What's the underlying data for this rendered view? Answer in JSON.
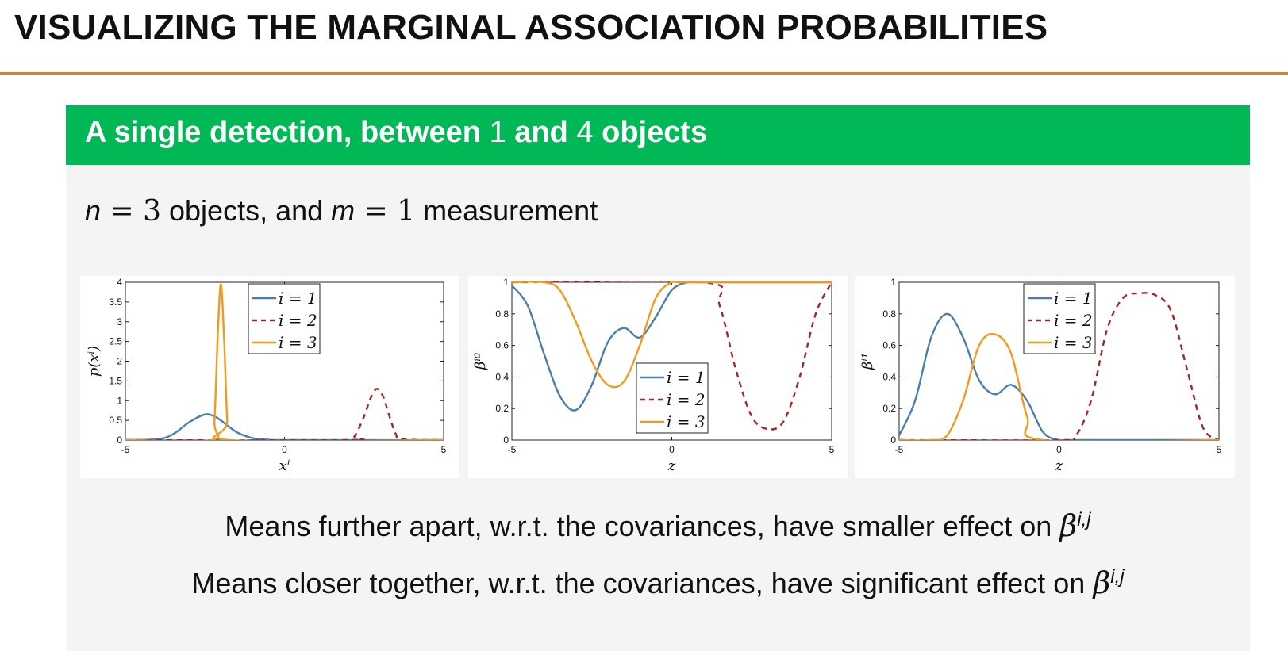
{
  "slide": {
    "title": "VISUALIZING THE MARGINAL ASSOCIATION PROBABILITIES",
    "accent_color": "#e8762c"
  },
  "block": {
    "header_color": "#00b956",
    "title_part1": "A single detection, between ",
    "title_num1": "1",
    "title_part2": " and ",
    "title_num2": "4",
    "title_part3": " objects",
    "setup": {
      "n_symbol": "n",
      "n_eq": " = 3",
      "mid": " objects, and ",
      "m_symbol": "m",
      "m_eq": " = 1",
      "end": " measurement"
    },
    "caption1_text": "Means further apart, w.r.t. the covariances, have smaller effect on ",
    "caption2_text": "Means closer together, w.r.t. the covariances, have significant effect on ",
    "beta_symbol": "β",
    "beta_sup": "i,j"
  },
  "chart_data": [
    {
      "type": "line",
      "ylabel": "p(xⁱ)",
      "xlabel": "xⁱ",
      "xlim": [
        -5,
        5
      ],
      "ylim": [
        0,
        4
      ],
      "xticks": [
        "-5",
        "0",
        "5"
      ],
      "yticks": [
        "0",
        "0.5",
        "1",
        "1.5",
        "2",
        "2.5",
        "3",
        "3.5",
        "4"
      ],
      "legend_position": "top-center",
      "series": [
        {
          "name": "i = 1",
          "color": "#4a7fad",
          "dash": "solid",
          "x": [
            -5,
            -4,
            -3.5,
            -3,
            -2.5,
            -2.2,
            -2,
            -1.5,
            -1,
            -0.5,
            0,
            5
          ],
          "y": [
            0,
            0.02,
            0.15,
            0.45,
            0.65,
            0.6,
            0.5,
            0.2,
            0.05,
            0.01,
            0,
            0
          ]
        },
        {
          "name": "i = 2",
          "color": "#a82424",
          "dash": "dashed",
          "x": [
            -5,
            1.9,
            2.2,
            2.5,
            2.7,
            2.9,
            3.1,
            3.3,
            3.5,
            3.7,
            5
          ],
          "y": [
            0,
            0,
            0.1,
            0.6,
            1.05,
            1.3,
            1.1,
            0.6,
            0.15,
            0.02,
            0
          ]
        },
        {
          "name": "i = 3",
          "color": "#f09a1e",
          "dash": "solid",
          "x": [
            -5,
            -2.3,
            -2.2,
            -2.1,
            -2.0,
            -1.9,
            -1.8,
            -1.7,
            5
          ],
          "y": [
            0,
            0,
            0.5,
            2.6,
            3.95,
            2.6,
            0.5,
            0,
            0
          ]
        }
      ]
    },
    {
      "type": "line",
      "ylabel": "βⁱ⁰",
      "xlabel": "z",
      "xlim": [
        -5,
        5
      ],
      "ylim": [
        0,
        1
      ],
      "xticks": [
        "-5",
        "0",
        "5"
      ],
      "yticks": [
        "0",
        "0.2",
        "0.4",
        "0.6",
        "0.8",
        "1"
      ],
      "legend_position": "lower-center",
      "series": [
        {
          "name": "i = 1",
          "color": "#4a7fad",
          "dash": "solid",
          "x": [
            -5,
            -4.5,
            -4,
            -3.5,
            -3,
            -2.5,
            -2,
            -1.5,
            -1,
            -0.5,
            0,
            0.5,
            1,
            5
          ],
          "y": [
            0.98,
            0.85,
            0.55,
            0.28,
            0.19,
            0.35,
            0.62,
            0.71,
            0.65,
            0.78,
            0.95,
            1,
            1,
            1
          ]
        },
        {
          "name": "i = 2",
          "color": "#a82424",
          "dash": "dashed",
          "x": [
            -5,
            1,
            1.5,
            2,
            2.5,
            3,
            3.5,
            4,
            4.5,
            5
          ],
          "y": [
            1,
            1,
            0.85,
            0.45,
            0.15,
            0.07,
            0.12,
            0.4,
            0.8,
            1
          ]
        },
        {
          "name": "i = 3",
          "color": "#f09a1e",
          "dash": "solid",
          "x": [
            -5,
            -4,
            -3.5,
            -3,
            -2.5,
            -2,
            -1.5,
            -1,
            -0.5,
            0,
            0.5,
            5
          ],
          "y": [
            1,
            1,
            0.95,
            0.75,
            0.5,
            0.35,
            0.37,
            0.6,
            0.9,
            1,
            1,
            1
          ]
        }
      ]
    },
    {
      "type": "line",
      "ylabel": "βⁱ¹",
      "xlabel": "z",
      "xlim": [
        -5,
        5
      ],
      "ylim": [
        0,
        1
      ],
      "xticks": [
        "-5",
        "0",
        "5"
      ],
      "yticks": [
        "0",
        "0.2",
        "0.4",
        "0.6",
        "0.8",
        "1"
      ],
      "legend_position": "top-center",
      "series": [
        {
          "name": "i = 1",
          "color": "#4a7fad",
          "dash": "solid",
          "x": [
            -5,
            -4.5,
            -4,
            -3.5,
            -3,
            -2.5,
            -2,
            -1.5,
            -1,
            -0.5,
            0,
            0.5,
            5
          ],
          "y": [
            0.03,
            0.25,
            0.65,
            0.8,
            0.65,
            0.38,
            0.29,
            0.35,
            0.25,
            0.05,
            0,
            0,
            0
          ]
        },
        {
          "name": "i = 2",
          "color": "#a82424",
          "dash": "dashed",
          "x": [
            -5,
            0,
            0.5,
            1,
            1.5,
            2,
            2.5,
            3,
            3.5,
            4,
            4.5,
            5
          ],
          "y": [
            0,
            0,
            0.02,
            0.25,
            0.7,
            0.9,
            0.93,
            0.92,
            0.82,
            0.45,
            0.08,
            0
          ]
        },
        {
          "name": "i = 3",
          "color": "#f09a1e",
          "dash": "solid",
          "x": [
            -5,
            -4,
            -3.5,
            -3,
            -2.5,
            -2,
            -1.5,
            -1,
            -0.5,
            5
          ],
          "y": [
            0,
            0,
            0.03,
            0.25,
            0.6,
            0.67,
            0.55,
            0.15,
            0,
            0
          ]
        }
      ]
    }
  ]
}
